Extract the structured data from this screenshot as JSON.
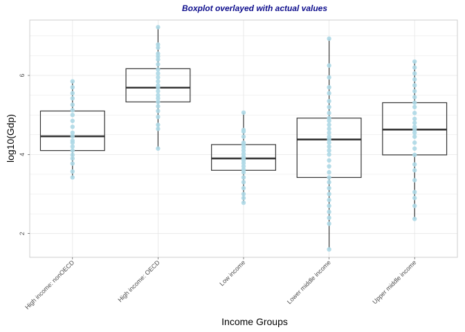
{
  "chart_data": {
    "type": "box",
    "title": "Boxplot overlayed with actual values",
    "xlabel": "Income Groups",
    "ylabel": "log10(Gdp)",
    "ylim": [
      1.4,
      7.4
    ],
    "yticks": [
      2,
      4,
      6
    ],
    "grid": true,
    "categories": [
      "High income: nonOECD",
      "High income: OECD",
      "Low income",
      "Lower middle income",
      "Upper middle income"
    ],
    "boxes": [
      {
        "category": "High income: nonOECD",
        "min": 3.42,
        "q1": 4.1,
        "median": 4.46,
        "q3": 5.1,
        "max": 5.85
      },
      {
        "category": "High income: OECD",
        "min": 4.15,
        "q1": 5.33,
        "median": 5.69,
        "q3": 6.17,
        "max": 7.22
      },
      {
        "category": "Low income",
        "min": 2.78,
        "q1": 3.6,
        "median": 3.9,
        "q3": 4.25,
        "max": 5.06
      },
      {
        "category": "Lower middle income",
        "min": 1.6,
        "q1": 3.42,
        "median": 4.38,
        "q3": 4.92,
        "max": 6.93
      },
      {
        "category": "Upper middle income",
        "min": 2.37,
        "q1": 3.99,
        "median": 4.63,
        "q3": 5.31,
        "max": 6.35
      }
    ],
    "points": [
      {
        "category": "High income: nonOECD",
        "values": [
          3.42,
          3.57,
          3.77,
          3.9,
          3.99,
          4.1,
          4.2,
          4.3,
          4.35,
          4.46,
          4.55,
          4.7,
          4.85,
          5.0,
          5.12,
          5.26,
          5.42,
          5.55,
          5.7,
          5.85
        ]
      },
      {
        "category": "High income: OECD",
        "values": [
          4.15,
          4.65,
          4.75,
          4.95,
          5.1,
          5.22,
          5.33,
          5.42,
          5.5,
          5.6,
          5.69,
          5.75,
          5.85,
          5.95,
          6.05,
          6.15,
          6.28,
          6.4,
          6.48,
          6.55,
          6.7,
          6.78,
          7.22
        ]
      },
      {
        "category": "Low income",
        "values": [
          2.78,
          2.9,
          3.0,
          3.15,
          3.3,
          3.42,
          3.55,
          3.62,
          3.7,
          3.78,
          3.85,
          3.9,
          3.95,
          4.02,
          4.1,
          4.18,
          4.25,
          4.3,
          4.45,
          4.58,
          4.62,
          5.06
        ]
      },
      {
        "category": "Lower middle income",
        "values": [
          1.6,
          2.25,
          2.4,
          2.55,
          2.7,
          2.85,
          3.0,
          3.15,
          3.3,
          3.42,
          3.55,
          3.7,
          3.85,
          4.0,
          4.1,
          4.2,
          4.3,
          4.38,
          4.45,
          4.55,
          4.65,
          4.75,
          4.85,
          4.92,
          5.05,
          5.2,
          5.35,
          5.55,
          5.7,
          5.95,
          6.25,
          6.93
        ]
      },
      {
        "category": "Upper middle income",
        "values": [
          2.37,
          2.7,
          2.9,
          3.05,
          3.35,
          3.6,
          3.75,
          3.99,
          4.15,
          4.3,
          4.45,
          4.55,
          4.63,
          4.7,
          4.8,
          4.9,
          5.05,
          5.2,
          5.31,
          5.45,
          5.6,
          5.75,
          5.9,
          6.05,
          6.2,
          6.35
        ]
      }
    ],
    "colors": {
      "point": "#add8e6",
      "box_stroke": "#333333",
      "median": "#333333",
      "grid": "#e5e5e5",
      "panel_border": "#cccccc",
      "title": "#0d0d8c"
    }
  }
}
